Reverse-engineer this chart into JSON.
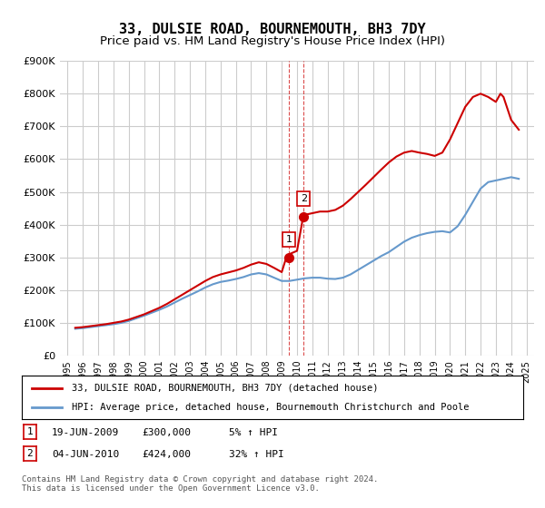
{
  "title": "33, DULSIE ROAD, BOURNEMOUTH, BH3 7DY",
  "subtitle": "Price paid vs. HM Land Registry's House Price Index (HPI)",
  "title_fontsize": 11,
  "subtitle_fontsize": 9.5,
  "ylabel_ticks": [
    "£0",
    "£100K",
    "£200K",
    "£300K",
    "£400K",
    "£500K",
    "£600K",
    "£700K",
    "£800K",
    "£900K"
  ],
  "ytick_values": [
    0,
    100000,
    200000,
    300000,
    400000,
    500000,
    600000,
    700000,
    800000,
    900000
  ],
  "ylim": [
    0,
    900000
  ],
  "xlim_start": 1995,
  "xlim_end": 2025.5,
  "xtick_years": [
    1995,
    1996,
    1997,
    1998,
    1999,
    2000,
    2001,
    2002,
    2003,
    2004,
    2005,
    2006,
    2007,
    2008,
    2009,
    2010,
    2011,
    2012,
    2013,
    2014,
    2015,
    2016,
    2017,
    2018,
    2019,
    2020,
    2021,
    2022,
    2023,
    2024,
    2025
  ],
  "hpi_x": [
    1995.5,
    1996.0,
    1996.5,
    1997.0,
    1997.5,
    1998.0,
    1998.5,
    1999.0,
    1999.5,
    2000.0,
    2000.5,
    2001.0,
    2001.5,
    2002.0,
    2002.5,
    2003.0,
    2003.5,
    2004.0,
    2004.5,
    2005.0,
    2005.5,
    2006.0,
    2006.5,
    2007.0,
    2007.5,
    2008.0,
    2008.5,
    2009.0,
    2009.5,
    2010.0,
    2010.5,
    2011.0,
    2011.5,
    2012.0,
    2012.5,
    2013.0,
    2013.5,
    2014.0,
    2014.5,
    2015.0,
    2015.5,
    2016.0,
    2016.5,
    2017.0,
    2017.5,
    2018.0,
    2018.5,
    2019.0,
    2019.5,
    2020.0,
    2020.5,
    2021.0,
    2021.5,
    2022.0,
    2022.5,
    2023.0,
    2023.5,
    2024.0,
    2024.5
  ],
  "hpi_y": [
    82000,
    84000,
    87000,
    90000,
    93000,
    96000,
    100000,
    106000,
    114000,
    122000,
    131000,
    140000,
    150000,
    162000,
    174000,
    185000,
    196000,
    208000,
    218000,
    225000,
    229000,
    234000,
    240000,
    248000,
    252000,
    248000,
    238000,
    228000,
    228000,
    232000,
    236000,
    238000,
    238000,
    235000,
    234000,
    238000,
    248000,
    262000,
    276000,
    290000,
    304000,
    316000,
    332000,
    348000,
    360000,
    368000,
    374000,
    378000,
    380000,
    376000,
    395000,
    430000,
    470000,
    510000,
    530000,
    535000,
    540000,
    545000,
    540000
  ],
  "prop_x": [
    1995.5,
    1996.0,
    1996.5,
    1997.0,
    1997.5,
    1998.0,
    1998.5,
    1999.0,
    1999.5,
    2000.0,
    2000.5,
    2001.0,
    2001.5,
    2002.0,
    2002.5,
    2003.0,
    2003.5,
    2004.0,
    2004.5,
    2005.0,
    2005.5,
    2006.0,
    2006.5,
    2007.0,
    2007.5,
    2008.0,
    2008.5,
    2009.0,
    2009.3,
    2009.5,
    2010.0,
    2010.4,
    2010.5,
    2011.0,
    2011.5,
    2012.0,
    2012.5,
    2013.0,
    2013.5,
    2014.0,
    2014.5,
    2015.0,
    2015.5,
    2016.0,
    2016.5,
    2017.0,
    2017.5,
    2018.0,
    2018.5,
    2019.0,
    2019.5,
    2020.0,
    2020.5,
    2021.0,
    2021.5,
    2022.0,
    2022.5,
    2023.0,
    2023.3,
    2023.5,
    2024.0,
    2024.5
  ],
  "prop_y": [
    85000,
    87000,
    90000,
    93000,
    96000,
    100000,
    104000,
    110000,
    118000,
    126000,
    136000,
    146000,
    158000,
    172000,
    186000,
    200000,
    214000,
    228000,
    240000,
    248000,
    254000,
    260000,
    268000,
    278000,
    285000,
    280000,
    268000,
    255000,
    300000,
    310000,
    320000,
    424000,
    430000,
    435000,
    440000,
    440000,
    445000,
    458000,
    478000,
    500000,
    522000,
    545000,
    568000,
    590000,
    608000,
    620000,
    625000,
    620000,
    616000,
    610000,
    620000,
    660000,
    710000,
    760000,
    790000,
    800000,
    790000,
    775000,
    800000,
    790000,
    720000,
    690000
  ],
  "marker1_x": 2009.46,
  "marker1_y": 300000,
  "marker2_x": 2010.43,
  "marker2_y": 424000,
  "vline1_x": 2009.46,
  "vline2_x": 2010.43,
  "line_color_prop": "#cc0000",
  "line_color_hpi": "#6699cc",
  "marker_color": "#cc0000",
  "vline_color": "#cc0000",
  "grid_color": "#cccccc",
  "bg_color": "#ffffff",
  "legend_label_prop": "33, DULSIE ROAD, BOURNEMOUTH, BH3 7DY (detached house)",
  "legend_label_hpi": "HPI: Average price, detached house, Bournemouth Christchurch and Poole",
  "transaction1_label": "1",
  "transaction1_date": "19-JUN-2009",
  "transaction1_price": "£300,000",
  "transaction1_hpi": "5% ↑ HPI",
  "transaction2_label": "2",
  "transaction2_date": "04-JUN-2010",
  "transaction2_price": "£424,000",
  "transaction2_hpi": "32% ↑ HPI",
  "footer": "Contains HM Land Registry data © Crown copyright and database right 2024.\nThis data is licensed under the Open Government Licence v3.0."
}
